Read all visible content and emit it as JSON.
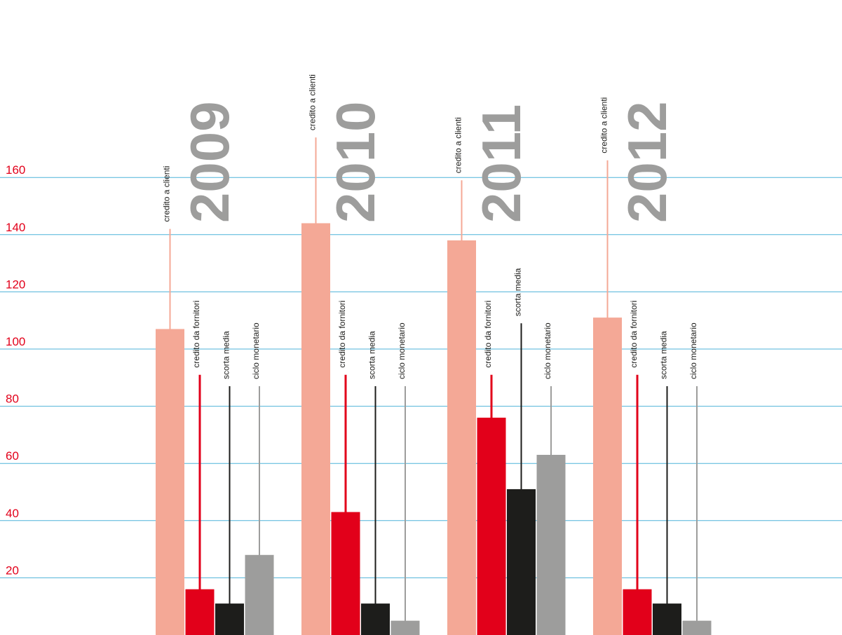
{
  "chart_data": {
    "type": "bar",
    "title": "",
    "xlabel": "",
    "ylabel": "",
    "ylim": [
      0,
      160
    ],
    "y_ticks": [
      20,
      40,
      60,
      80,
      100,
      120,
      140,
      160
    ],
    "grid": true,
    "legend": "none",
    "categories": [
      "2009",
      "2010",
      "2011",
      "2012"
    ],
    "series": [
      {
        "name": "credito a clienti",
        "color": "#f4a896",
        "values": [
          107,
          144,
          138,
          111
        ],
        "stem_top": [
          142,
          174,
          159,
          166
        ]
      },
      {
        "name": "credito da fornitori",
        "color": "#e2001a",
        "values": [
          16,
          43,
          76,
          16
        ],
        "stem_top": [
          91,
          91,
          91,
          91
        ]
      },
      {
        "name": "scorta media",
        "color": "#1d1d1b",
        "values": [
          11,
          11,
          51,
          11
        ],
        "stem_top": [
          87,
          87,
          109,
          87
        ]
      },
      {
        "name": "ciclo monetario",
        "color": "#9d9d9c",
        "values": [
          28,
          5,
          63,
          5
        ],
        "stem_top": [
          87,
          87,
          87,
          87
        ]
      }
    ]
  },
  "colors": {
    "grid": "#4fb3d9",
    "tick_label": "#e2001a",
    "year_label": "#9d9d9c"
  }
}
